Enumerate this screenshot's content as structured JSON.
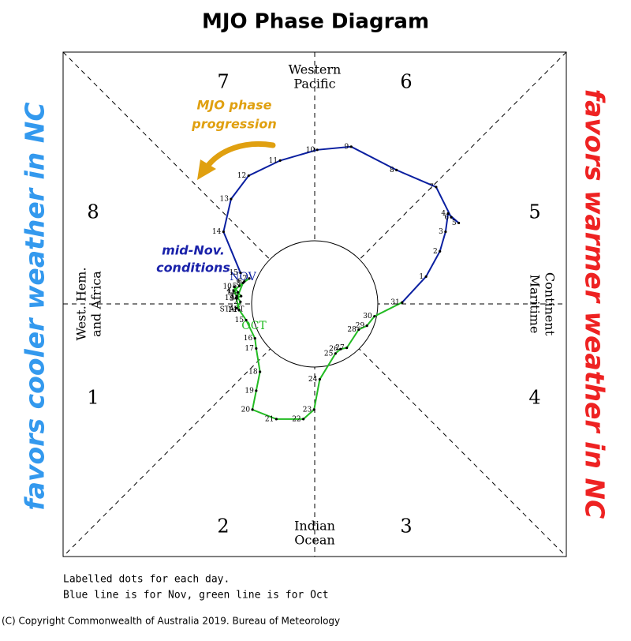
{
  "chart_data": {
    "type": "line",
    "title": "MJO Phase Diagram",
    "xlim": [
      -4,
      4
    ],
    "ylim": [
      -4,
      4
    ],
    "side_labels": {
      "left": "favors cooler weather in NC",
      "right": "favors warmer weather in NC"
    },
    "phases": [
      "1",
      "2",
      "3",
      "4",
      "5",
      "6",
      "7",
      "8"
    ],
    "regions": {
      "top": [
        "Western",
        "Pacific"
      ],
      "bottom": [
        "Indian",
        "Ocean"
      ],
      "left": [
        "West. Hem.",
        "and Africa"
      ],
      "right": [
        "Maritime",
        "Continent"
      ]
    },
    "annotations": {
      "progression": [
        "MJO phase",
        "progression"
      ],
      "mid_nov": [
        "mid-Nov.",
        "conditions"
      ],
      "start": "START"
    },
    "series": [
      {
        "name": "OCT",
        "color": "#22bb22",
        "x": [
          -1.24,
          -1.18,
          -1.24,
          -1.29,
          -1.2,
          -1.12,
          -1.04,
          -1.14,
          -1.24,
          -1.28,
          -1.22,
          -1.17,
          -1.25,
          -1.2,
          -1.09,
          -0.95,
          -0.93,
          -0.87,
          -0.93,
          -0.99,
          -0.61,
          -0.18,
          -0.01,
          0.08,
          0.33,
          0.41,
          0.51,
          0.7,
          0.83,
          0.95,
          1.39
        ],
        "values": [
          -0.06,
          0.04,
          0.13,
          0.21,
          0.29,
          0.36,
          0.41,
          0.34,
          0.09,
          0.28,
          0.19,
          0.13,
          0.1,
          -0.09,
          -0.25,
          -0.54,
          -0.7,
          -1.07,
          -1.37,
          -1.67,
          -1.82,
          -1.82,
          -1.67,
          -1.19,
          -0.78,
          -0.71,
          -0.69,
          -0.4,
          -0.34,
          -0.19,
          0.03
        ],
        "point_labels": [
          1,
          2,
          3,
          4,
          5,
          6,
          7,
          8,
          9,
          10,
          11,
          12,
          13,
          14,
          15,
          16,
          17,
          18,
          19,
          20,
          21,
          22,
          23,
          24,
          25,
          26,
          27,
          28,
          29,
          30,
          31
        ]
      },
      {
        "name": "NOV",
        "color": "#0a1fa0",
        "x": [
          1.77,
          1.99,
          2.08,
          2.12,
          2.29,
          2.17,
          1.93,
          1.3,
          0.58,
          0.04,
          -0.55,
          -1.05,
          -1.33,
          -1.45,
          -1.18
        ],
        "values": [
          0.44,
          0.84,
          1.15,
          1.44,
          1.29,
          1.38,
          1.86,
          2.13,
          2.5,
          2.45,
          2.28,
          2.04,
          1.67,
          1.15,
          0.5
        ],
        "point_labels": [
          1,
          2,
          3,
          4,
          5,
          6,
          7,
          8,
          9,
          10,
          11,
          12,
          13,
          14,
          15
        ]
      }
    ],
    "notes": [
      "Labelled dots for each day.",
      "Blue line is for Nov, green line is for Oct"
    ],
    "copyright": "(C) Copyright Commonwealth of Australia 2019. Bureau of Meteorology"
  }
}
